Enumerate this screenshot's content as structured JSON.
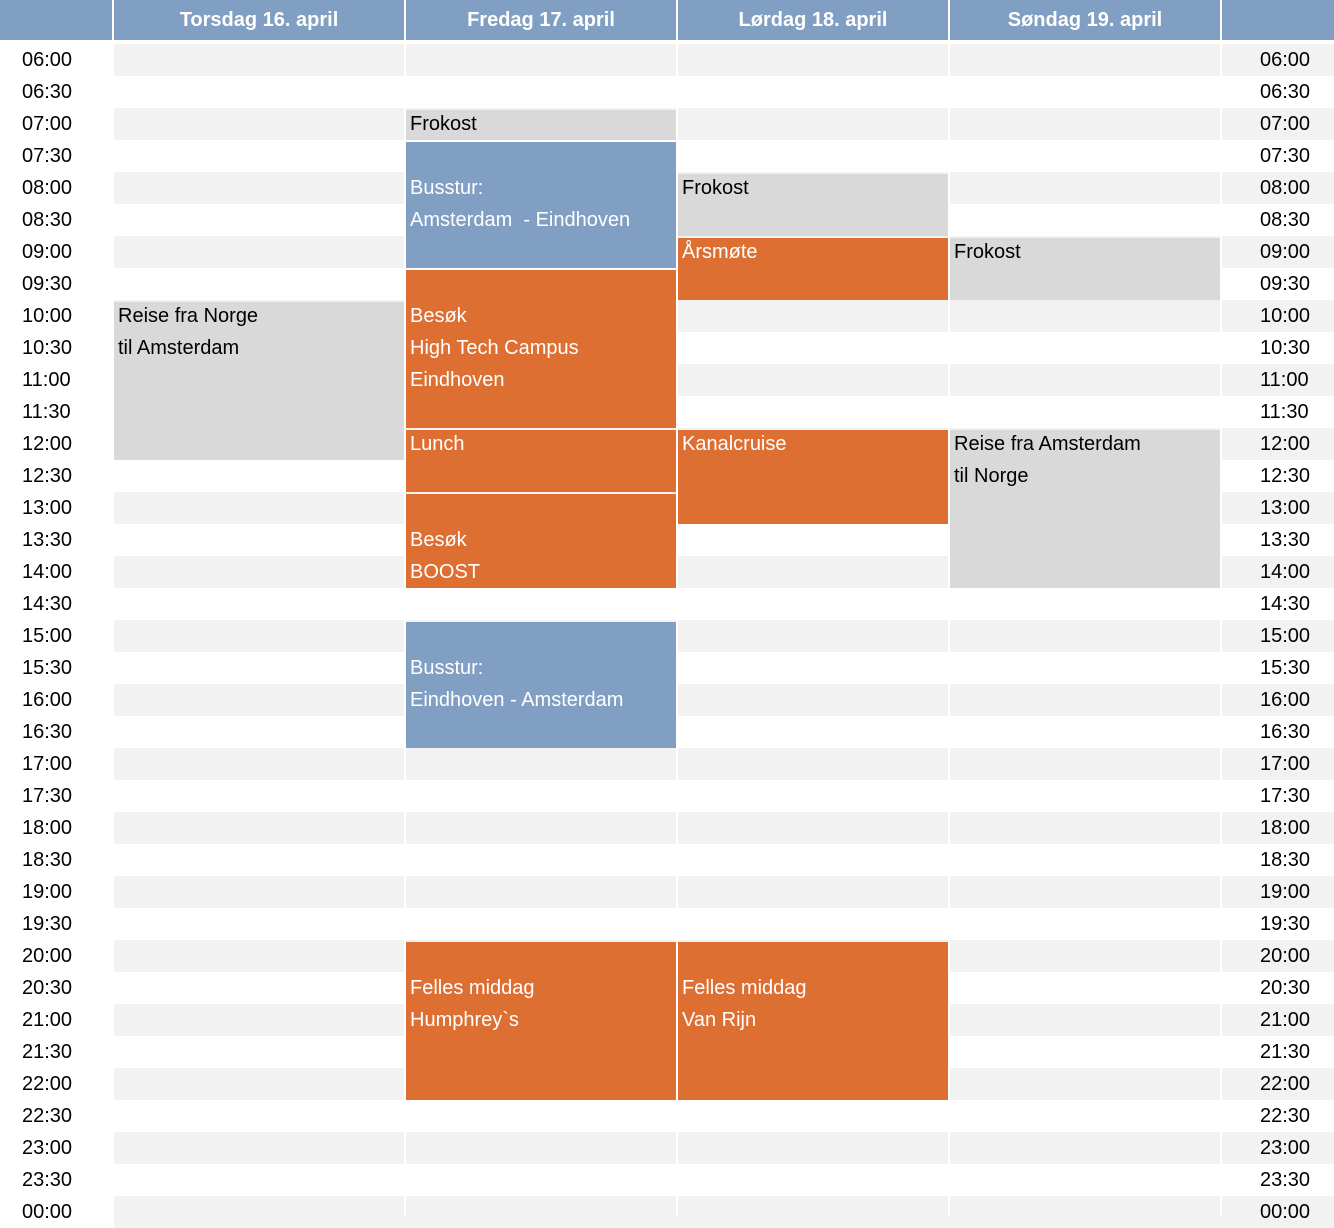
{
  "days": [
    "Torsdag 16. april",
    "Fredag 17. april",
    "Lørdag 18. april",
    "Søndag 19. april"
  ],
  "times": [
    "06:00",
    "06:30",
    "07:00",
    "07:30",
    "08:00",
    "08:30",
    "09:00",
    "09:30",
    "10:00",
    "10:30",
    "11:00",
    "11:30",
    "12:00",
    "12:30",
    "13:00",
    "13:30",
    "14:00",
    "14:30",
    "15:00",
    "15:30",
    "16:00",
    "16:30",
    "17:00",
    "17:30",
    "18:00",
    "18:30",
    "19:00",
    "19:30",
    "20:00",
    "20:30",
    "21:00",
    "21:30",
    "22:00",
    "22:30",
    "23:00",
    "23:30",
    "00:00"
  ],
  "events": [
    {
      "day": 0,
      "start": "10:00",
      "end": "12:30",
      "style": "gray",
      "label_lines": [
        "Reise fra Norge",
        "til Amsterdam"
      ],
      "label_start": "10:00"
    },
    {
      "day": 1,
      "start": "07:00",
      "end": "07:30",
      "style": "gray",
      "label_lines": [
        "Frokost"
      ],
      "label_start": "07:00"
    },
    {
      "day": 1,
      "start": "07:30",
      "end": "09:30",
      "style": "blue",
      "label_lines": [
        "Busstur:",
        "Amsterdam  - Eindhoven"
      ],
      "label_start": "08:00"
    },
    {
      "day": 1,
      "start": "09:30",
      "end": "12:00",
      "style": "orange",
      "label_lines": [
        "Besøk",
        "High Tech Campus",
        "Eindhoven"
      ],
      "label_start": "10:00"
    },
    {
      "day": 1,
      "start": "12:00",
      "end": "13:00",
      "style": "orange",
      "label_lines": [
        "Lunch"
      ],
      "label_start": "12:00"
    },
    {
      "day": 1,
      "start": "13:00",
      "end": "14:30",
      "style": "orange",
      "label_lines": [
        "Besøk",
        "BOOST"
      ],
      "label_start": "13:30"
    },
    {
      "day": 1,
      "start": "15:00",
      "end": "17:00",
      "style": "blue",
      "label_lines": [
        "Busstur:",
        "Eindhoven - Amsterdam"
      ],
      "label_start": "15:30"
    },
    {
      "day": 1,
      "start": "20:00",
      "end": "22:30",
      "style": "orange",
      "label_lines": [
        "Felles middag",
        "Humphrey`s"
      ],
      "label_start": "20:30"
    },
    {
      "day": 2,
      "start": "08:00",
      "end": "09:00",
      "style": "gray",
      "label_lines": [
        "Frokost"
      ],
      "label_start": "08:00"
    },
    {
      "day": 2,
      "start": "09:00",
      "end": "10:00",
      "style": "orange",
      "label_lines": [
        "Årsmøte"
      ],
      "label_start": "09:00"
    },
    {
      "day": 2,
      "start": "12:00",
      "end": "13:30",
      "style": "orange",
      "label_lines": [
        "Kanalcruise"
      ],
      "label_start": "12:00"
    },
    {
      "day": 2,
      "start": "20:00",
      "end": "22:30",
      "style": "orange",
      "label_lines": [
        "Felles middag",
        "Van Rijn"
      ],
      "label_start": "20:30"
    },
    {
      "day": 3,
      "start": "09:00",
      "end": "10:00",
      "style": "gray",
      "label_lines": [
        "Frokost"
      ],
      "label_start": "09:00"
    },
    {
      "day": 3,
      "start": "12:00",
      "end": "14:30",
      "style": "gray",
      "label_lines": [
        "Reise fra Amsterdam",
        "til Norge"
      ],
      "label_start": "12:00"
    }
  ],
  "colors": {
    "header": "#819fc3",
    "row_shade": "#f2f2f2",
    "event_gray": "#d9d9d9",
    "event_blue": "#819fc3",
    "event_orange": "#dd6f33"
  }
}
